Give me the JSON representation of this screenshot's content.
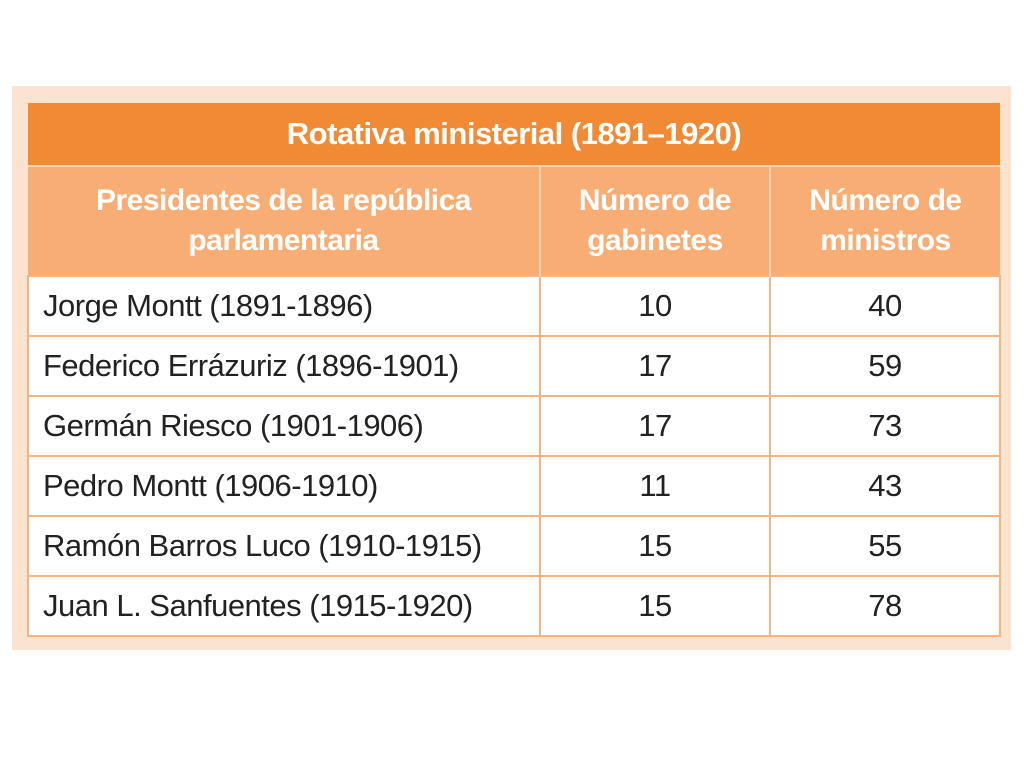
{
  "table": {
    "title": "Rotativa ministerial (1891–1920)",
    "headers": [
      "Presidentes de la república parlamentaria",
      "Número de gabinetes",
      "Número de ministros"
    ],
    "rows": [
      {
        "president": "Jorge Montt (1891-1896)",
        "gabinetes": "10",
        "ministros": "40"
      },
      {
        "president": "Federico Errázuriz (1896-1901)",
        "gabinetes": "17",
        "ministros": "59"
      },
      {
        "president": "Germán Riesco (1901-1906)",
        "gabinetes": "17",
        "ministros": "73"
      },
      {
        "president": "Pedro Montt (1906-1910)",
        "gabinetes": "11",
        "ministros": "43"
      },
      {
        "president": "Ramón Barros Luco (1910-1915)",
        "gabinetes": "15",
        "ministros": "55"
      },
      {
        "president": "Juan L. Sanfuentes (1915-1920)",
        "gabinetes": "15",
        "ministros": "78"
      }
    ]
  },
  "colors": {
    "title_bg": "#f18a35",
    "header_bg": "#f7ad74",
    "border": "#f6b483",
    "frame_bg": "#fbe3cf"
  }
}
